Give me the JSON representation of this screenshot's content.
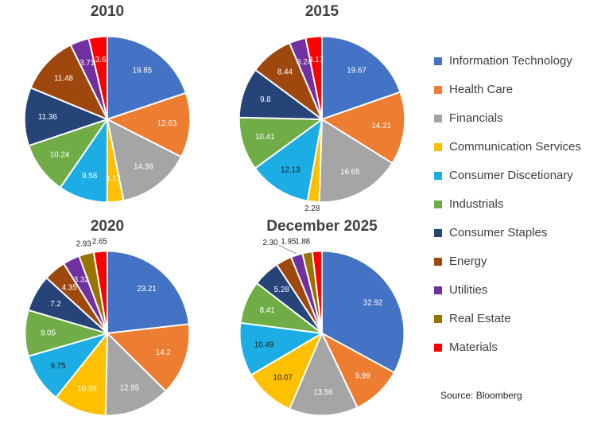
{
  "figure": {
    "background": "#ffffff"
  },
  "legend": {
    "position": "right",
    "items": [
      {
        "label": "Information Technology",
        "color": "#4472C4"
      },
      {
        "label": "Health Care",
        "color": "#ED7D31"
      },
      {
        "label": "Financials",
        "color": "#A5A5A5"
      },
      {
        "label": "Communication Services",
        "color": "#FFC000"
      },
      {
        "label": "Consumer Discetionary",
        "color": "#1BADE4"
      },
      {
        "label": "Industrials",
        "color": "#70AD47"
      },
      {
        "label": "Consumer Staples",
        "color": "#264478"
      },
      {
        "label": "Energy",
        "color": "#9E480E"
      },
      {
        "label": "Utilities",
        "color": "#7030A0"
      },
      {
        "label": "Real Estate",
        "color": "#997300"
      },
      {
        "label": "Materials",
        "color": "#FF0000"
      }
    ],
    "source": "Source: Bloomberg"
  },
  "chart_data": [
    {
      "type": "pie",
      "title": "2010",
      "start_angle_deg": 0,
      "direction": "clockwise",
      "slices": [
        {
          "sector": "Information Technology",
          "value": 19.85,
          "label": "19.85",
          "label_pos": "in",
          "label_tone": "light"
        },
        {
          "sector": "Health Care",
          "value": 12.63,
          "label": "12.63",
          "label_pos": "in",
          "label_tone": "light"
        },
        {
          "sector": "Financials",
          "value": 14.38,
          "label": "14.38",
          "label_pos": "in",
          "label_tone": "light"
        },
        {
          "sector": "Communication Services",
          "value": 3.17,
          "label": "3.17",
          "label_pos": "in",
          "label_tone": "light"
        },
        {
          "sector": "Consumer Discetionary",
          "value": 9.58,
          "label": "9.58",
          "label_pos": "in",
          "label_tone": "light"
        },
        {
          "sector": "Industrials",
          "value": 10.24,
          "label": "10.24",
          "label_pos": "in",
          "label_tone": "light"
        },
        {
          "sector": "Consumer Staples",
          "value": 11.36,
          "label": "11.36",
          "label_pos": "in",
          "label_tone": "light"
        },
        {
          "sector": "Energy",
          "value": 11.48,
          "label": "11.48",
          "label_pos": "in",
          "label_tone": "light"
        },
        {
          "sector": "Utilities",
          "value": 3.71,
          "label": "3.71",
          "label_pos": "in",
          "label_tone": "light"
        },
        {
          "sector": "Materials",
          "value": 3.6,
          "label": "3.6",
          "label_pos": "in",
          "label_tone": "light"
        }
      ]
    },
    {
      "type": "pie",
      "title": "2015",
      "start_angle_deg": 0,
      "direction": "clockwise",
      "slices": [
        {
          "sector": "Information Technology",
          "value": 19.67,
          "label": "19.67",
          "label_pos": "in",
          "label_tone": "light"
        },
        {
          "sector": "Health Care",
          "value": 14.21,
          "label": "14.21",
          "label_pos": "in",
          "label_tone": "light"
        },
        {
          "sector": "Financials",
          "value": 16.65,
          "label": "16.65",
          "label_pos": "in",
          "label_tone": "light"
        },
        {
          "sector": "Communication Services",
          "value": 2.28,
          "label": "2.28",
          "label_pos": "out",
          "label_tone": "dark"
        },
        {
          "sector": "Consumer Discetionary",
          "value": 12.13,
          "label": "12.13",
          "label_pos": "in",
          "label_tone": "dark"
        },
        {
          "sector": "Industrials",
          "value": 10.41,
          "label": "10.41",
          "label_pos": "in",
          "label_tone": "light"
        },
        {
          "sector": "Consumer Staples",
          "value": 9.8,
          "label": "9.8",
          "label_pos": "in",
          "label_tone": "light"
        },
        {
          "sector": "Energy",
          "value": 8.44,
          "label": "8.44",
          "label_pos": "in",
          "label_tone": "light"
        },
        {
          "sector": "Utilities",
          "value": 3.24,
          "label": "3.24",
          "label_pos": "in",
          "label_tone": "light"
        },
        {
          "sector": "Materials",
          "value": 3.17,
          "label": "3.17",
          "label_pos": "in",
          "label_tone": "light"
        }
      ]
    },
    {
      "type": "pie",
      "title": "2020",
      "start_angle_deg": 0,
      "direction": "clockwise",
      "slices": [
        {
          "sector": "Information Technology",
          "value": 23.21,
          "label": "23.21",
          "label_pos": "in",
          "label_tone": "light"
        },
        {
          "sector": "Health Care",
          "value": 14.2,
          "label": "14.2",
          "label_pos": "in",
          "label_tone": "light"
        },
        {
          "sector": "Financials",
          "value": 12.95,
          "label": "12.95",
          "label_pos": "in",
          "label_tone": "light"
        },
        {
          "sector": "Communication Services",
          "value": 10.39,
          "label": "10.39",
          "label_pos": "in",
          "label_tone": "light"
        },
        {
          "sector": "Consumer Discetionary",
          "value": 9.75,
          "label": "9.75",
          "label_pos": "in",
          "label_tone": "dark"
        },
        {
          "sector": "Industrials",
          "value": 9.05,
          "label": "9.05",
          "label_pos": "in",
          "label_tone": "light"
        },
        {
          "sector": "Consumer Staples",
          "value": 7.2,
          "label": "7.2",
          "label_pos": "in",
          "label_tone": "light"
        },
        {
          "sector": "Energy",
          "value": 4.35,
          "label": "4.35",
          "label_pos": "in",
          "label_tone": "light"
        },
        {
          "sector": "Utilities",
          "value": 3.32,
          "label": "3.32",
          "label_pos": "in",
          "label_tone": "light"
        },
        {
          "sector": "Real Estate",
          "value": 2.93,
          "label": "2.93",
          "label_pos": "out",
          "label_tone": "dark"
        },
        {
          "sector": "Materials",
          "value": 2.65,
          "label": "2.65",
          "label_pos": "out",
          "label_tone": "dark"
        }
      ]
    },
    {
      "type": "pie",
      "title": "December 2025",
      "start_angle_deg": 0,
      "direction": "clockwise",
      "slices": [
        {
          "sector": "Information Technology",
          "value": 32.92,
          "label": "32.92",
          "label_pos": "in",
          "label_tone": "light"
        },
        {
          "sector": "Health Care",
          "value": 9.99,
          "label": "9.99",
          "label_pos": "in",
          "label_tone": "light"
        },
        {
          "sector": "Financials",
          "value": 13.56,
          "label": "13.56",
          "label_pos": "in",
          "label_tone": "light"
        },
        {
          "sector": "Communication Services",
          "value": 10.07,
          "label": "10.07",
          "label_pos": "in",
          "label_tone": "dark"
        },
        {
          "sector": "Consumer Discetionary",
          "value": 10.49,
          "label": "10.49",
          "label_pos": "in",
          "label_tone": "dark"
        },
        {
          "sector": "Industrials",
          "value": 8.41,
          "label": "8.41",
          "label_pos": "in",
          "label_tone": "light"
        },
        {
          "sector": "Consumer Staples",
          "value": 5.28,
          "label": "5.28",
          "label_pos": "in",
          "label_tone": "light"
        },
        {
          "sector": "Energy",
          "value": 3.15,
          "label": null,
          "label_pos": "in",
          "label_tone": "light"
        },
        {
          "sector": "Utilities",
          "value": 2.3,
          "label": "2.30",
          "label_pos": "out",
          "label_tone": "dark",
          "leader": true
        },
        {
          "sector": "Real Estate",
          "value": 1.95,
          "label": "1.95",
          "label_pos": "out",
          "label_tone": "dark"
        },
        {
          "sector": "Materials",
          "value": 1.88,
          "label": "1.88",
          "label_pos": "out",
          "label_tone": "dark"
        }
      ]
    }
  ]
}
